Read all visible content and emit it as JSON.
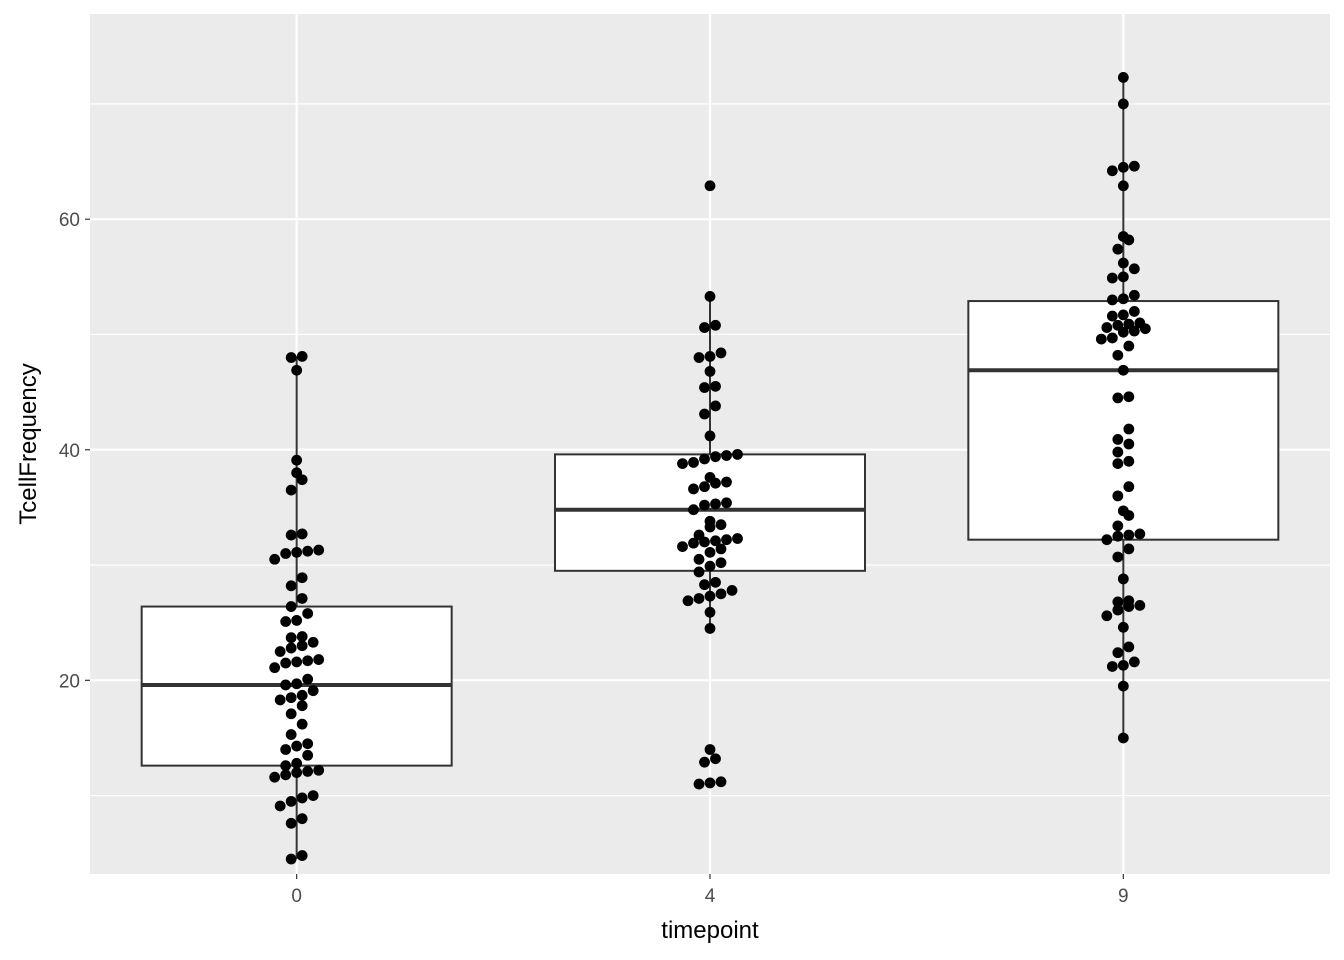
{
  "chart_data": {
    "type": "box",
    "title": "",
    "xlabel": "timepoint",
    "ylabel": "TcellFrequency",
    "categories": [
      "0",
      "4",
      "9"
    ],
    "ylim": [
      3.2,
      77.8
    ],
    "yticks": [
      20,
      40,
      60
    ],
    "grid": true,
    "background": "#ebebeb",
    "boxes": [
      {
        "category": "0",
        "min": 4.5,
        "q1": 12.6,
        "median": 19.6,
        "q3": 26.4,
        "max": 48.1
      },
      {
        "category": "4",
        "min": 24.5,
        "q1": 29.5,
        "median": 34.8,
        "q3": 39.6,
        "max": 53.3
      },
      {
        "category": "9",
        "min": 15.0,
        "q1": 32.2,
        "median": 46.9,
        "q3": 52.9,
        "max": 72.3
      }
    ],
    "points": [
      {
        "category": "0",
        "values": [
          4.5,
          4.8,
          7.6,
          8.0,
          9.1,
          9.5,
          9.8,
          10.0,
          11.6,
          11.8,
          12.0,
          12.1,
          12.2,
          12.6,
          12.8,
          13.5,
          14.0,
          14.3,
          14.5,
          15.3,
          16.2,
          17.1,
          17.8,
          18.3,
          18.5,
          18.7,
          19.1,
          19.6,
          19.7,
          20.1,
          21.1,
          21.5,
          21.6,
          21.7,
          21.8,
          22.5,
          22.8,
          23.0,
          23.3,
          23.7,
          23.8,
          25.1,
          25.2,
          25.8,
          26.4,
          27.1,
          28.2,
          28.9,
          30.5,
          31.0,
          31.1,
          31.2,
          31.3,
          32.6,
          32.7,
          36.5,
          37.4,
          38.0,
          39.1,
          46.9,
          48.0,
          48.1
        ]
      },
      {
        "category": "4",
        "values": [
          11.0,
          11.1,
          11.2,
          12.9,
          13.2,
          14.0,
          24.5,
          25.9,
          26.9,
          27.1,
          27.3,
          27.5,
          27.8,
          28.3,
          28.5,
          29.4,
          29.9,
          30.2,
          30.5,
          31.1,
          31.4,
          31.6,
          31.9,
          32.0,
          32.1,
          32.2,
          32.3,
          32.6,
          33.3,
          33.5,
          33.8,
          34.8,
          35.2,
          35.3,
          35.4,
          36.6,
          36.8,
          37.1,
          37.2,
          37.6,
          38.8,
          38.9,
          39.2,
          39.4,
          39.5,
          39.6,
          41.2,
          43.1,
          43.8,
          45.4,
          45.5,
          46.8,
          48.0,
          48.1,
          48.4,
          50.6,
          50.8,
          53.3,
          62.9
        ]
      },
      {
        "category": "9",
        "values": [
          15.0,
          19.5,
          21.2,
          21.3,
          21.6,
          22.4,
          22.9,
          24.6,
          25.6,
          26.1,
          26.4,
          26.5,
          26.8,
          26.9,
          28.8,
          30.7,
          31.4,
          32.2,
          32.5,
          32.6,
          32.7,
          33.4,
          34.3,
          34.7,
          36.0,
          36.8,
          38.8,
          39.0,
          39.8,
          40.5,
          40.9,
          41.8,
          44.5,
          44.6,
          46.9,
          48.2,
          49.0,
          49.6,
          49.7,
          50.2,
          50.3,
          50.5,
          50.6,
          50.8,
          50.9,
          51.0,
          51.6,
          51.7,
          52.0,
          53.0,
          53.1,
          53.4,
          54.9,
          55.0,
          55.7,
          56.2,
          57.4,
          58.2,
          58.5,
          62.9,
          64.2,
          64.5,
          64.6,
          70.0,
          72.3
        ]
      }
    ]
  }
}
